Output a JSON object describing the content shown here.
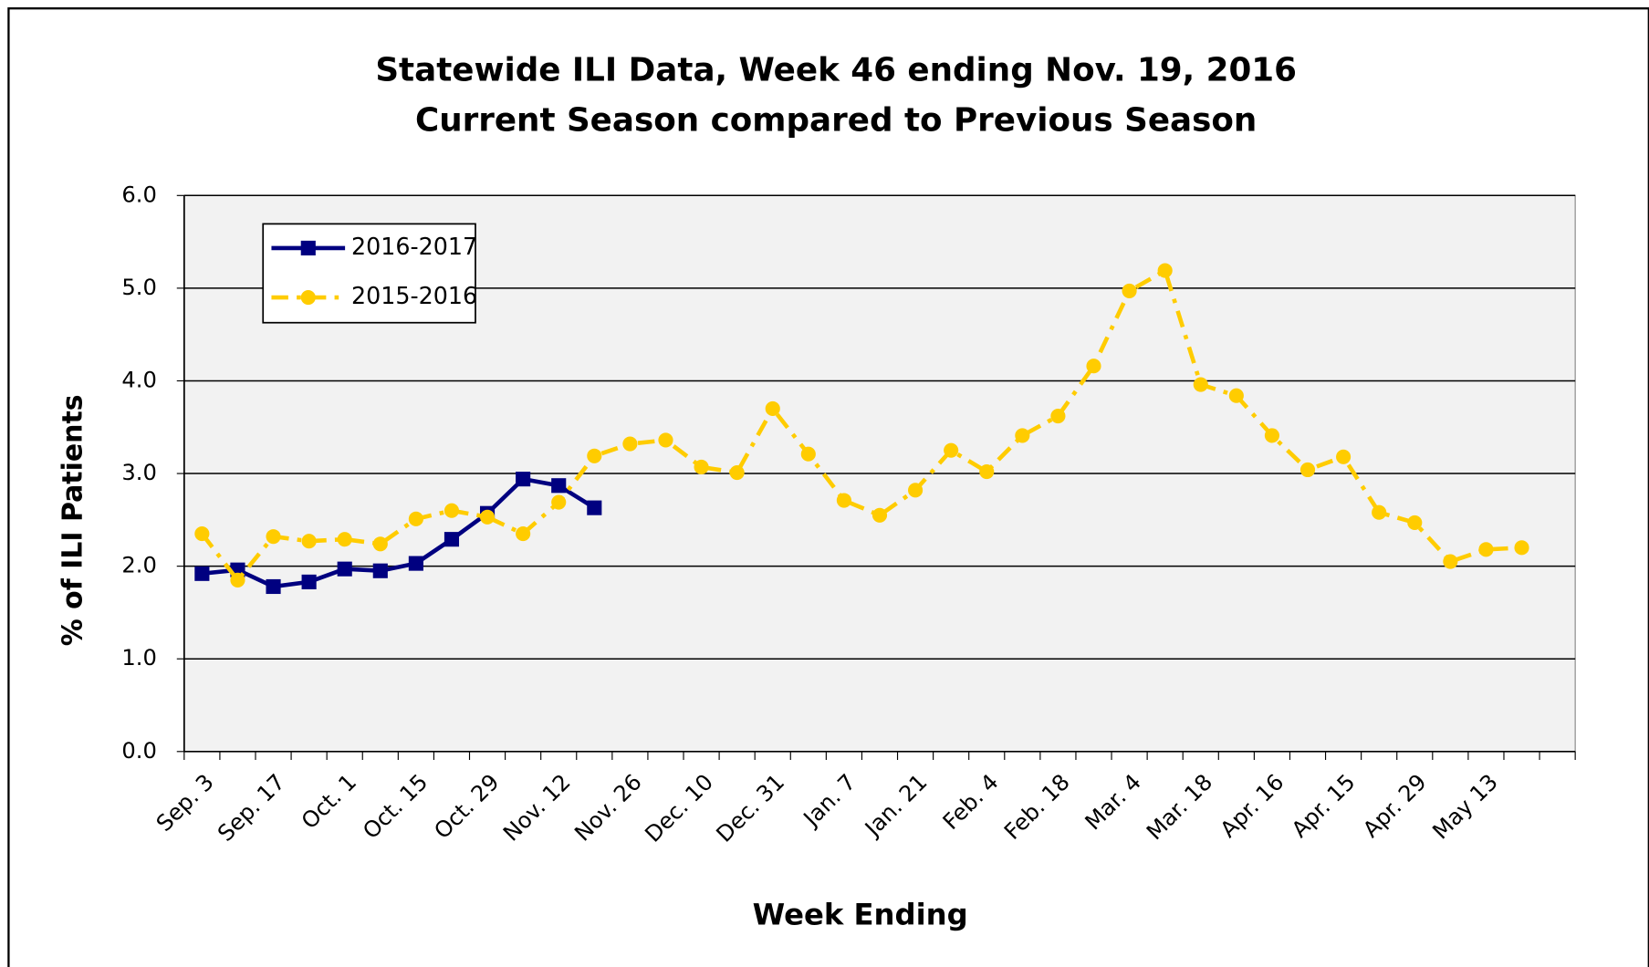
{
  "chart_data": {
    "type": "line",
    "title": "Statewide ILI Data, Week 46 ending Nov. 19, 2016",
    "subtitle": "Current Season compared to Previous Season",
    "x_label": "Week Ending",
    "y_label": "% of ILI Patients",
    "categories": [
      "Sep. 3",
      null,
      "Sep. 17",
      null,
      "Oct. 1",
      null,
      "Oct. 15",
      null,
      "Oct. 29",
      null,
      "Nov. 12",
      null,
      "Nov. 26",
      null,
      "Dec. 10",
      null,
      "Dec. 31",
      null,
      "Jan. 7",
      null,
      "Jan. 21",
      null,
      "Feb. 4",
      null,
      "Feb. 18",
      null,
      "Mar. 4",
      null,
      "Mar. 18",
      null,
      "Apr. 16",
      null,
      "Apr. 15",
      null,
      "Apr. 29",
      null,
      "May 13",
      null,
      null
    ],
    "series": [
      {
        "name": "2016-2017",
        "color": "#000080",
        "marker": "square",
        "dash": "solid",
        "values": [
          1.92,
          1.96,
          1.78,
          1.83,
          1.97,
          1.95,
          2.03,
          2.29,
          2.57,
          2.94,
          2.87,
          2.63,
          null,
          null,
          null,
          null,
          null,
          null,
          null,
          null,
          null,
          null,
          null,
          null,
          null,
          null,
          null,
          null,
          null,
          null,
          null,
          null,
          null,
          null,
          null,
          null,
          null,
          null,
          null
        ]
      },
      {
        "name": "2015-2016",
        "color": "#ffcc00",
        "marker": "circle",
        "dash": "dashdot",
        "values": [
          2.35,
          1.85,
          2.32,
          2.27,
          2.29,
          2.24,
          2.51,
          2.6,
          2.53,
          2.35,
          2.69,
          3.19,
          3.32,
          3.36,
          3.07,
          3.01,
          3.7,
          3.21,
          2.71,
          2.55,
          2.82,
          3.25,
          3.02,
          3.41,
          3.62,
          4.16,
          4.97,
          5.19,
          3.96,
          3.84,
          3.41,
          3.04,
          3.18,
          2.58,
          2.47,
          2.05,
          2.18,
          2.2,
          null
        ]
      }
    ],
    "ylim": [
      0,
      6
    ],
    "yticks": [
      {
        "value": 0,
        "label": "0.0"
      },
      {
        "value": 1,
        "label": "1.0"
      },
      {
        "value": 2,
        "label": "2.0"
      },
      {
        "value": 3,
        "label": "3.0"
      },
      {
        "value": 4,
        "label": "4.0"
      },
      {
        "value": 5,
        "label": "5.0"
      },
      {
        "value": 6,
        "label": "6.0"
      }
    ],
    "grid": true,
    "legend": "upper-left",
    "plot_background": "#f2f2f2"
  }
}
